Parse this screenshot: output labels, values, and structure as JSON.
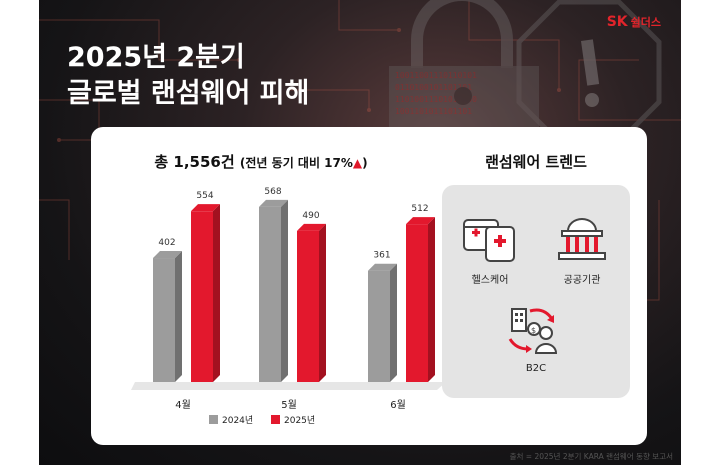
{
  "headline": {
    "line1": "2025년 2분기",
    "line2": "글로벌 랜섬웨어 피해"
  },
  "brand": {
    "part1": "SK",
    "part2": "쉴더스"
  },
  "chart_title": {
    "main": "총 1,556건",
    "sub": "(전년 동기 대비 17%",
    "arrow": "▲",
    "close": ")"
  },
  "chart_data": {
    "type": "bar",
    "categories": [
      "4월",
      "5월",
      "6월"
    ],
    "series": [
      {
        "name": "2024년",
        "values": [
          402,
          568,
          361
        ],
        "color": "#9c9c9c"
      },
      {
        "name": "2025년",
        "values": [
          554,
          490,
          512
        ],
        "color": "#e3182d"
      }
    ],
    "ylim": [
      0,
      600
    ]
  },
  "trend": {
    "title": "랜섬웨어 트렌드",
    "items": [
      {
        "label": "헬스케어",
        "icon": "healthcare-icon"
      },
      {
        "label": "공공기관",
        "icon": "public-institution-icon"
      },
      {
        "label": "B2C",
        "icon": "b2c-icon"
      }
    ]
  },
  "source": "출처 = 2025년 2분기 KARA 랜섬웨어 동향 보고서",
  "colors": {
    "accent": "#e3182d",
    "gray": "#9c9c9c"
  }
}
